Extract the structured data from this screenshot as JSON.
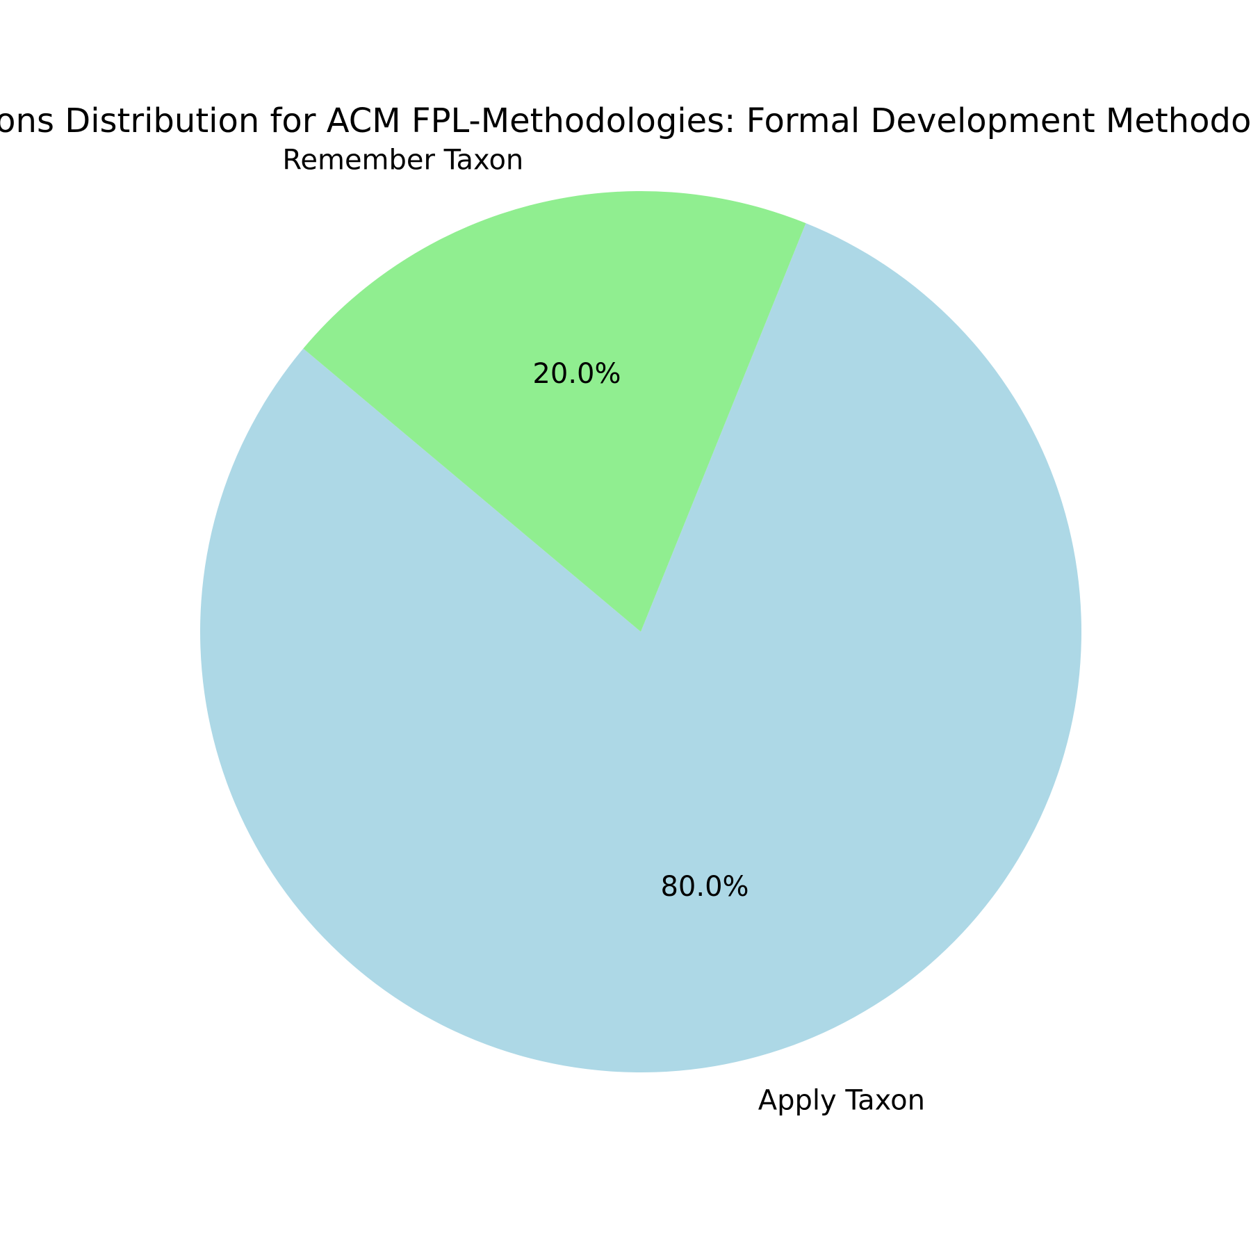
{
  "chart_data": {
    "type": "pie",
    "title": "Actions Distribution for ACM FPL-Methodologies: Formal Development Methodologies",
    "slices": [
      {
        "label": "Apply Taxon",
        "value": 80.0,
        "pct_label": "80.0%",
        "color": "#add8e6"
      },
      {
        "label": "Remember Taxon",
        "value": 20.0,
        "pct_label": "20.0%",
        "color": "#90ee90"
      }
    ]
  }
}
